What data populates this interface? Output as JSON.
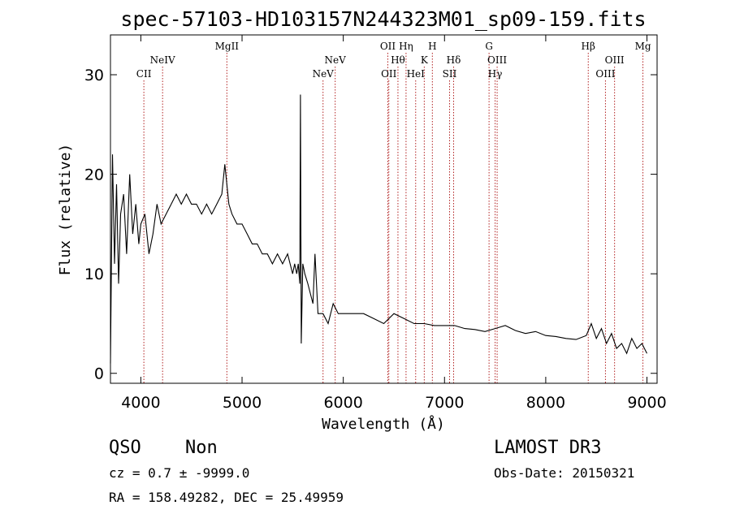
{
  "chart_data": {
    "type": "line",
    "title": "spec-57103-HD103157N244323M01_sp09-159.fits",
    "xlabel": "Wavelength (Å)",
    "ylabel": "Flux (relative)",
    "xlim": [
      3700,
      9100
    ],
    "ylim": [
      -1,
      34
    ],
    "xticks": [
      4000,
      5000,
      6000,
      7000,
      8000,
      9000
    ],
    "yticks": [
      0,
      10,
      20,
      30
    ],
    "grid": false,
    "series": [
      {
        "color": "#000000",
        "x": [
          3700,
          3720,
          3740,
          3760,
          3780,
          3800,
          3830,
          3860,
          3890,
          3920,
          3950,
          3980,
          4000,
          4040,
          4080,
          4120,
          4160,
          4200,
          4250,
          4300,
          4350,
          4400,
          4450,
          4500,
          4550,
          4600,
          4650,
          4700,
          4750,
          4800,
          4830,
          4850,
          4870,
          4900,
          4950,
          5000,
          5050,
          5100,
          5150,
          5200,
          5250,
          5300,
          5350,
          5400,
          5450,
          5500,
          5520,
          5540,
          5555,
          5570,
          5577,
          5585,
          5600,
          5620,
          5650,
          5700,
          5720,
          5750,
          5800,
          5850,
          5900,
          5950,
          6000,
          6100,
          6200,
          6300,
          6400,
          6500,
          6600,
          6700,
          6800,
          6900,
          7000,
          7100,
          7200,
          7300,
          7400,
          7500,
          7600,
          7700,
          7800,
          7900,
          8000,
          8100,
          8200,
          8300,
          8400,
          8450,
          8500,
          8550,
          8600,
          8650,
          8700,
          8750,
          8800,
          8850,
          8900,
          8950,
          9000
        ],
        "y": [
          1,
          22,
          11,
          19,
          9,
          16,
          18,
          12,
          20,
          14,
          17,
          13,
          15,
          16,
          12,
          14,
          17,
          15,
          16,
          17,
          18,
          17,
          18,
          17,
          17,
          16,
          17,
          16,
          17,
          18,
          21,
          19,
          17,
          16,
          15,
          15,
          14,
          13,
          13,
          12,
          12,
          11,
          12,
          11,
          12,
          10,
          11,
          10,
          11,
          9,
          28,
          3,
          11,
          10,
          9,
          7,
          12,
          6,
          6,
          5,
          7,
          6,
          6,
          6,
          6,
          5.5,
          5,
          6,
          5.5,
          5,
          5,
          4.8,
          4.8,
          4.8,
          4.5,
          4.4,
          4.2,
          4.5,
          4.8,
          4.3,
          4,
          4.2,
          3.8,
          3.7,
          3.5,
          3.4,
          3.8,
          5,
          3.5,
          4.5,
          3,
          4,
          2.5,
          3,
          2,
          3.5,
          2.5,
          3,
          2
        ]
      }
    ],
    "emission_lines": [
      {
        "label": "CII",
        "x": 4030,
        "row": 3
      },
      {
        "label": "NeIV",
        "x": 4215,
        "row": 2
      },
      {
        "label": "MgII",
        "x": 4850,
        "row": 1
      },
      {
        "label": "NeV",
        "x": 5800,
        "row": 3
      },
      {
        "label": "NeV",
        "x": 5920,
        "row": 2
      },
      {
        "label": "OII",
        "x": 6440,
        "row": 1
      },
      {
        "label": "OII",
        "x": 6450,
        "row": 3
      },
      {
        "label": "Hθ",
        "x": 6540,
        "row": 2
      },
      {
        "label": "Hη",
        "x": 6620,
        "row": 1
      },
      {
        "label": "HeI",
        "x": 6715,
        "row": 3
      },
      {
        "label": "K",
        "x": 6800,
        "row": 2
      },
      {
        "label": "H",
        "x": 6880,
        "row": 1
      },
      {
        "label": "SII",
        "x": 7050,
        "row": 3
      },
      {
        "label": "Hδ",
        "x": 7090,
        "row": 2
      },
      {
        "label": "G",
        "x": 7440,
        "row": 1
      },
      {
        "label": "OIII",
        "x": 7520,
        "row": 2
      },
      {
        "label": "Hγ",
        "x": 7500,
        "row": 3
      },
      {
        "label": "Hβ",
        "x": 8420,
        "row": 1
      },
      {
        "label": "OIII",
        "x": 8590,
        "row": 3
      },
      {
        "label": "OIII",
        "x": 8680,
        "row": 2
      },
      {
        "label": "Mg",
        "x": 8960,
        "row": 1
      }
    ]
  },
  "info": {
    "class": "QSO",
    "subclass": "Non",
    "survey": "LAMOST DR3",
    "cz": "cz = 0.7 ± -9999.0",
    "obs_date": "Obs-Date: 20150321",
    "coords": "RA = 158.49282, DEC =  25.49959"
  }
}
